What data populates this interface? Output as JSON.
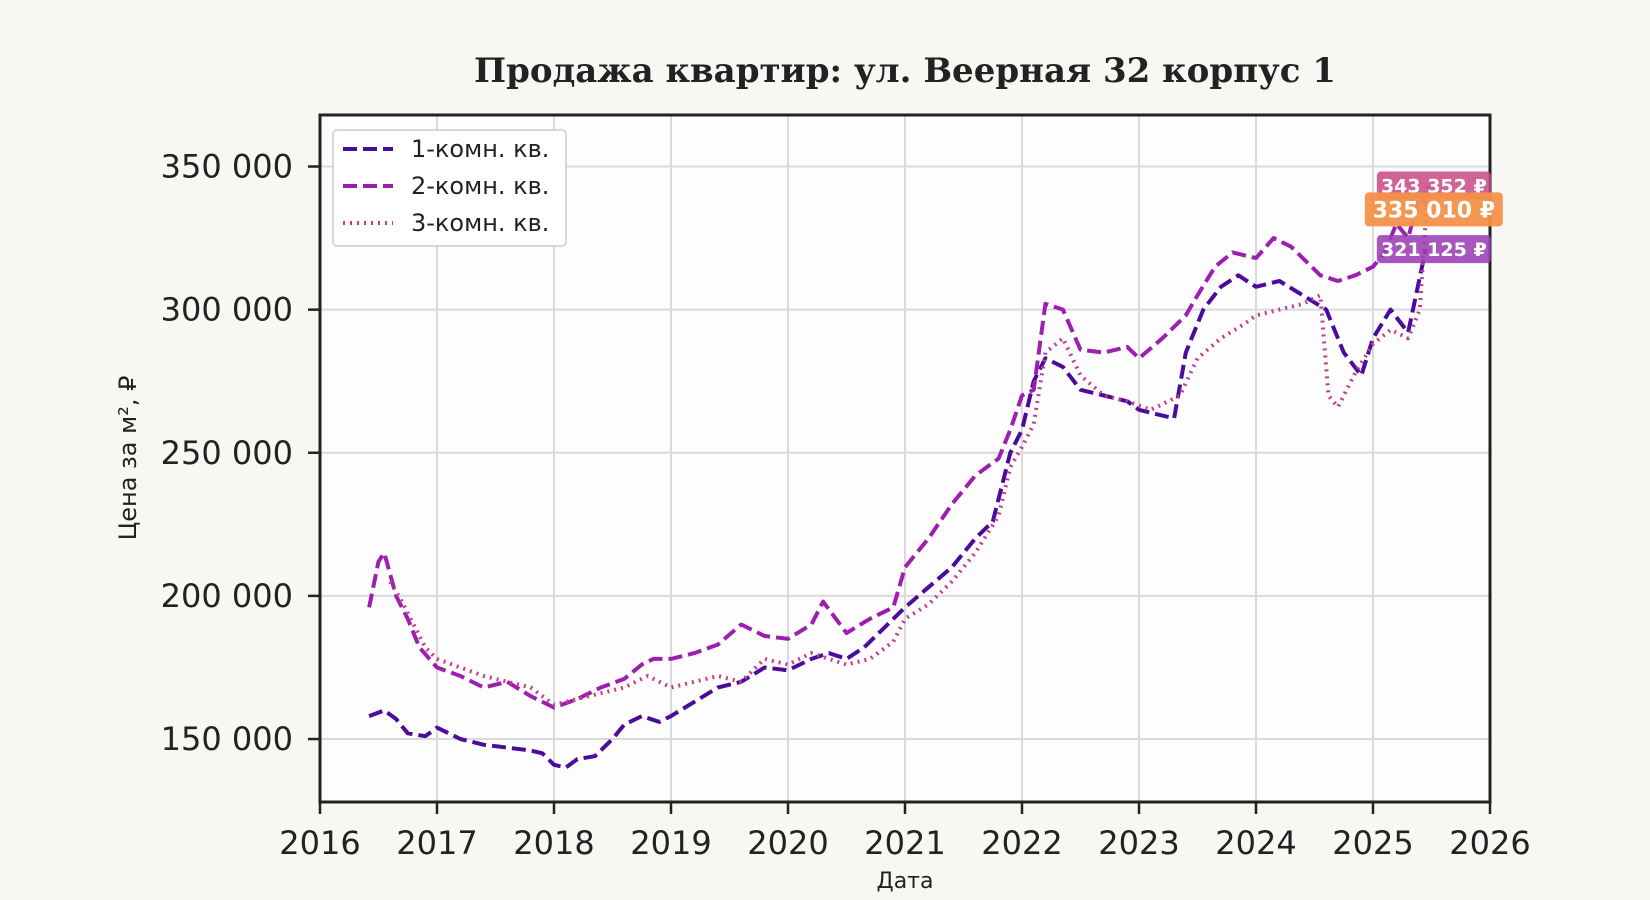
{
  "chart_data": {
    "type": "line",
    "title": "Продажа квартир: ул. Веерная 32 корпус 1",
    "xlabel": "Дата",
    "ylabel": "Цена за м², ₽",
    "xlim": [
      2016.0,
      2026.0
    ],
    "ylim": [
      128000,
      368000
    ],
    "x_ticks": [
      2016,
      2017,
      2018,
      2019,
      2020,
      2021,
      2022,
      2023,
      2024,
      2025,
      2026
    ],
    "x_tick_labels": [
      "2016",
      "2017",
      "2018",
      "2019",
      "2020",
      "2021",
      "2022",
      "2023",
      "2024",
      "2025",
      "2026"
    ],
    "y_ticks": [
      150000,
      200000,
      250000,
      300000,
      350000
    ],
    "y_tick_labels": [
      "150 000",
      "200 000",
      "250 000",
      "300 000",
      "350 000"
    ],
    "grid": true,
    "legend_position": "top-left",
    "series": [
      {
        "name": "1-комн. кв.",
        "color": "#4a0c9c",
        "dash": "dashed",
        "x": [
          2016.42,
          2016.55,
          2016.65,
          2016.75,
          2016.9,
          2017.0,
          2017.2,
          2017.4,
          2017.6,
          2017.8,
          2017.9,
          2018.0,
          2018.1,
          2018.2,
          2018.35,
          2018.5,
          2018.6,
          2018.75,
          2018.9,
          2019.0,
          2019.2,
          2019.4,
          2019.6,
          2019.8,
          2020.0,
          2020.2,
          2020.35,
          2020.5,
          2020.65,
          2020.8,
          2021.0,
          2021.2,
          2021.4,
          2021.6,
          2021.75,
          2021.9,
          2022.0,
          2022.1,
          2022.2,
          2022.35,
          2022.5,
          2022.7,
          2022.9,
          2023.0,
          2023.2,
          2023.3,
          2023.4,
          2023.55,
          2023.7,
          2023.85,
          2024.0,
          2024.2,
          2024.4,
          2024.6,
          2024.75,
          2024.9,
          2025.0,
          2025.15,
          2025.3,
          2025.45
        ],
        "y": [
          158000,
          160000,
          157000,
          152000,
          151000,
          154000,
          150000,
          148000,
          147000,
          146000,
          145000,
          141000,
          140000,
          143000,
          144000,
          150000,
          155000,
          158000,
          156000,
          158000,
          163000,
          168000,
          170000,
          175000,
          174000,
          178000,
          180000,
          178000,
          182000,
          188000,
          196000,
          203000,
          210000,
          220000,
          226000,
          250000,
          258000,
          275000,
          283000,
          280000,
          272000,
          270000,
          268000,
          265000,
          263000,
          262000,
          285000,
          300000,
          308000,
          312000,
          308000,
          310000,
          305000,
          300000,
          285000,
          277000,
          290000,
          300000,
          292000,
          321125
        ]
      },
      {
        "name": "2-комн. кв.",
        "color": "#9c1fb0",
        "dash": "dashed",
        "x": [
          2016.42,
          2016.5,
          2016.55,
          2016.65,
          2016.75,
          2016.85,
          2017.0,
          2017.2,
          2017.4,
          2017.6,
          2017.8,
          2018.0,
          2018.2,
          2018.4,
          2018.6,
          2018.75,
          2018.85,
          2019.0,
          2019.2,
          2019.4,
          2019.6,
          2019.8,
          2020.0,
          2020.2,
          2020.3,
          2020.5,
          2020.7,
          2020.9,
          2021.0,
          2021.2,
          2021.4,
          2021.6,
          2021.8,
          2021.9,
          2022.0,
          2022.1,
          2022.2,
          2022.35,
          2022.5,
          2022.7,
          2022.9,
          2023.0,
          2023.2,
          2023.4,
          2023.5,
          2023.65,
          2023.8,
          2024.0,
          2024.15,
          2024.3,
          2024.45,
          2024.55,
          2024.7,
          2024.85,
          2025.0,
          2025.1,
          2025.2,
          2025.3,
          2025.4,
          2025.47
        ],
        "y": [
          196000,
          212000,
          215000,
          200000,
          192000,
          182000,
          175000,
          172000,
          168000,
          170000,
          165000,
          161000,
          164000,
          168000,
          171000,
          176000,
          178000,
          178000,
          180000,
          183000,
          190000,
          186000,
          185000,
          190000,
          198000,
          187000,
          192000,
          196000,
          210000,
          220000,
          232000,
          242000,
          248000,
          258000,
          270000,
          272000,
          302000,
          300000,
          286000,
          285000,
          287000,
          283000,
          290000,
          298000,
          305000,
          315000,
          320000,
          318000,
          325000,
          322000,
          316000,
          312000,
          310000,
          312000,
          315000,
          320000,
          330000,
          325000,
          340000,
          335010
        ]
      },
      {
        "name": "3-комн. кв.",
        "color": "#c43c8e",
        "dash": "dotted",
        "x": [
          2016.6,
          2016.7,
          2016.8,
          2016.9,
          2017.0,
          2017.2,
          2017.4,
          2017.6,
          2017.8,
          2018.0,
          2018.2,
          2018.4,
          2018.6,
          2018.8,
          2019.0,
          2019.2,
          2019.4,
          2019.6,
          2019.8,
          2020.0,
          2020.2,
          2020.35,
          2020.5,
          2020.7,
          2020.9,
          2021.0,
          2021.2,
          2021.4,
          2021.6,
          2021.8,
          2021.9,
          2022.0,
          2022.1,
          2022.2,
          2022.35,
          2022.5,
          2022.7,
          2022.9,
          2023.1,
          2023.25,
          2023.35,
          2023.5,
          2023.7,
          2023.9,
          2024.0,
          2024.2,
          2024.4,
          2024.55,
          2024.62,
          2024.7,
          2024.85,
          2025.0,
          2025.15,
          2025.3,
          2025.4,
          2025.47
        ],
        "y": [
          205000,
          198000,
          190000,
          182000,
          178000,
          175000,
          172000,
          170000,
          168000,
          162000,
          164000,
          166000,
          168000,
          172000,
          168000,
          170000,
          172000,
          170000,
          178000,
          176000,
          180000,
          178000,
          176000,
          178000,
          184000,
          192000,
          197000,
          205000,
          215000,
          228000,
          245000,
          252000,
          260000,
          285000,
          290000,
          277000,
          270000,
          268000,
          265000,
          268000,
          270000,
          283000,
          290000,
          295000,
          298000,
          300000,
          302000,
          305000,
          270000,
          266000,
          278000,
          288000,
          293000,
          290000,
          300000,
          343352
        ]
      }
    ],
    "end_labels": [
      {
        "text": "343 352 ₽",
        "color": "#c94f8a"
      },
      {
        "text": "335 010 ₽",
        "color": "#f4914a"
      },
      {
        "text": "321 125 ₽",
        "color": "#9b3fb4"
      }
    ]
  }
}
